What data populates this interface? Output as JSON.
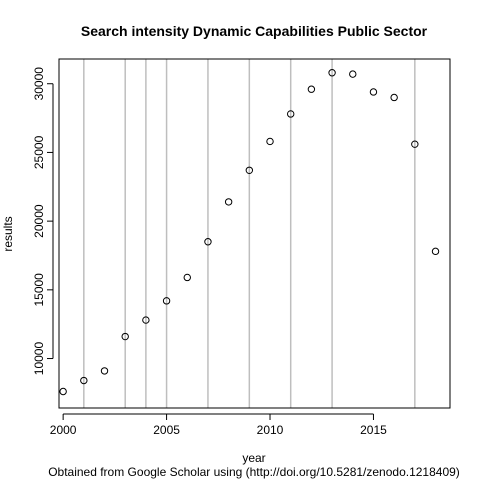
{
  "chart_data": {
    "type": "scatter",
    "title": "Search intensity Dynamic Capabilities Public Sector",
    "xlabel": "year",
    "ylabel": "results",
    "caption": "Obtained from  Google Scholar using (http://doi.org/10.5281/zenodo.1218409)",
    "xlim": [
      1999.8,
      2018.7
    ],
    "ylim": [
      6400,
      31800
    ],
    "xticks": [
      2000,
      2005,
      2010,
      2015
    ],
    "xtick_labels": [
      "2000",
      "2005",
      "2010",
      "2015"
    ],
    "yticks": [
      10000,
      15000,
      20000,
      25000,
      30000
    ],
    "ytick_labels": [
      "10000",
      "15000",
      "20000",
      "25000",
      "30000"
    ],
    "vlines": [
      2001,
      2003,
      2004,
      2005,
      2007,
      2009,
      2011,
      2013,
      2017
    ],
    "series": [
      {
        "marker": "open-circle",
        "x": [
          2000,
          2001,
          2002,
          2003,
          2004,
          2005,
          2006,
          2007,
          2008,
          2009,
          2010,
          2011,
          2012,
          2013,
          2014,
          2015,
          2016,
          2017,
          2018
        ],
        "y": [
          7600,
          8400,
          9100,
          11600,
          12800,
          14200,
          15900,
          18500,
          21400,
          23700,
          25800,
          27800,
          29600,
          30800,
          30700,
          29400,
          29000,
          25600,
          17800
        ]
      }
    ],
    "grid": false,
    "colors": {
      "points": "#000000",
      "vlines": "#bebebe",
      "axes": "#000000"
    }
  }
}
